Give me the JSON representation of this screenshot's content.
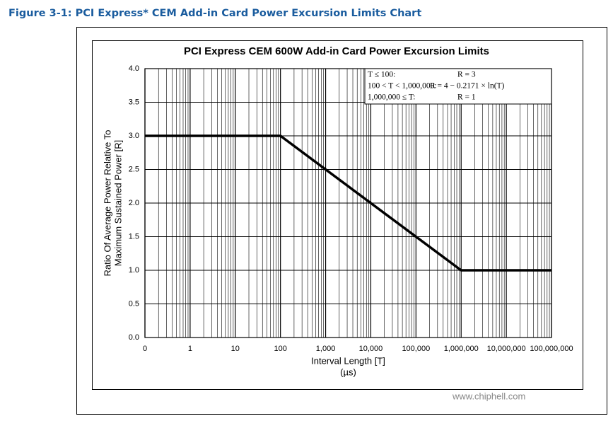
{
  "caption": "Figure 3-1: PCI Express* CEM Add-in Card Power Excursion Limits Chart",
  "chart_data": {
    "type": "line",
    "title": "PCI Express CEM 600W Add-in Card Power Excursion Limits",
    "xlabel": [
      "Interval Length  [T]",
      "(µs)"
    ],
    "ylabel": [
      "Ratio Of Average Power Relative To",
      "Maximum Sustained Power  [R]"
    ],
    "x": [
      0.1,
      100,
      1000000,
      100000000
    ],
    "values": [
      3,
      3,
      1,
      1
    ],
    "color": "#000000",
    "xscale": "log",
    "xlim": [
      0.1,
      100000000
    ],
    "xticks": [
      {
        "value": 0.1,
        "label": "0"
      },
      1,
      10,
      100,
      {
        "value": 1000,
        "label": "1,000"
      },
      {
        "value": 10000,
        "label": "10,000"
      },
      {
        "value": 100000,
        "label": "100,000"
      },
      {
        "value": 1000000,
        "label": "1,000,000"
      },
      {
        "value": 10000000,
        "label": "10,000,000"
      },
      {
        "value": 100000000,
        "label": "100,000,000"
      }
    ],
    "ylim": [
      0,
      4
    ],
    "yticks": [
      {
        "value": 0,
        "label": "0.0"
      },
      0.5,
      {
        "value": 1,
        "label": "1.0"
      },
      1.5,
      {
        "value": 2,
        "label": "2.0"
      },
      2.5,
      {
        "value": 3,
        "label": "3.0"
      },
      3.5,
      {
        "value": 4,
        "label": "4.0"
      }
    ],
    "grid": true,
    "annotations": [
      [
        "T ≤ 100:",
        "R = 3"
      ],
      [
        "100 < T < 1,000,000:",
        "R = 4 − 0.2171 × ln(T)"
      ],
      [
        "1,000,000 ≤ T:",
        "R = 1"
      ]
    ],
    "watermark": "www.chiphell.com"
  }
}
